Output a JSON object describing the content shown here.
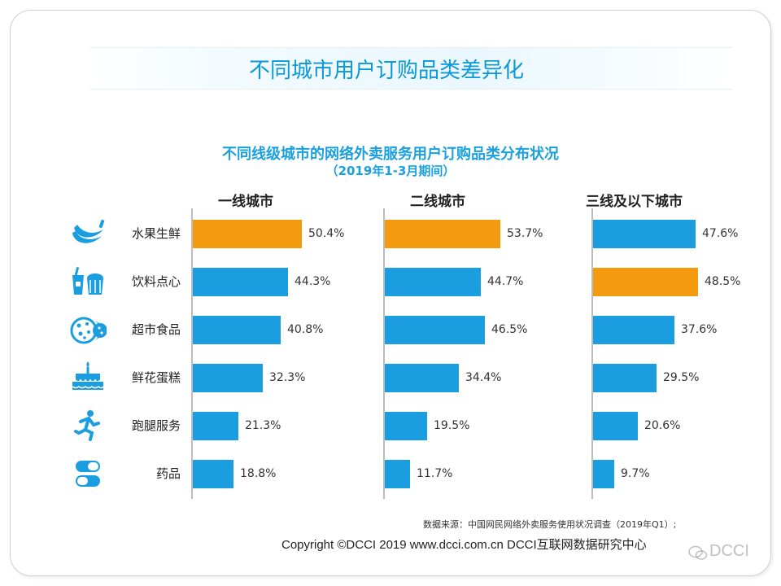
{
  "banner": {
    "title": "不同城市用户订购品类差异化"
  },
  "chart_data": {
    "type": "bar",
    "title": "不同线级城市的网络外卖服务用户订购品类分布状况",
    "subtitle": "（2019年1-3月期间）",
    "categories": [
      "水果生鲜",
      "饮料点心",
      "超市食品",
      "鲜花蛋糕",
      "跑腿服务",
      "药品"
    ],
    "series": [
      {
        "name": "一线城市",
        "values": [
          50.4,
          44.3,
          40.8,
          32.3,
          21.3,
          18.8
        ],
        "labels": [
          "50.4%",
          "44.3%",
          "40.8%",
          "32.3%",
          "21.3%",
          "18.8%"
        ],
        "highlight_index": 0
      },
      {
        "name": "二线城市",
        "values": [
          53.7,
          44.7,
          46.5,
          34.4,
          19.5,
          11.7
        ],
        "labels": [
          "53.7%",
          "44.7%",
          "46.5%",
          "34.4%",
          "19.5%",
          "11.7%"
        ],
        "highlight_index": 0
      },
      {
        "name": "三线及以下城市",
        "values": [
          47.6,
          48.5,
          37.6,
          29.5,
          20.6,
          9.7
        ],
        "labels": [
          "47.6%",
          "48.5%",
          "37.6%",
          "29.5%",
          "20.6%",
          "9.7%"
        ],
        "highlight_index": 1
      }
    ],
    "colors": {
      "bar": "#1a9ee0",
      "highlight": "#f39a0f"
    },
    "grid": false
  },
  "category_icons": [
    "banana-icon",
    "drink-pastry-icon",
    "cookie-icon",
    "cake-icon",
    "running-person-icon",
    "pill-icon"
  ],
  "footer": {
    "source": "数据来源：中国网民网络外卖服务使用状况调查（2019年Q1）;",
    "copyright": "Copyright  ©DCCI 2019   www.dcci.com.cn   DCCI互联网数据研究中心",
    "watermark": "DCCI"
  }
}
